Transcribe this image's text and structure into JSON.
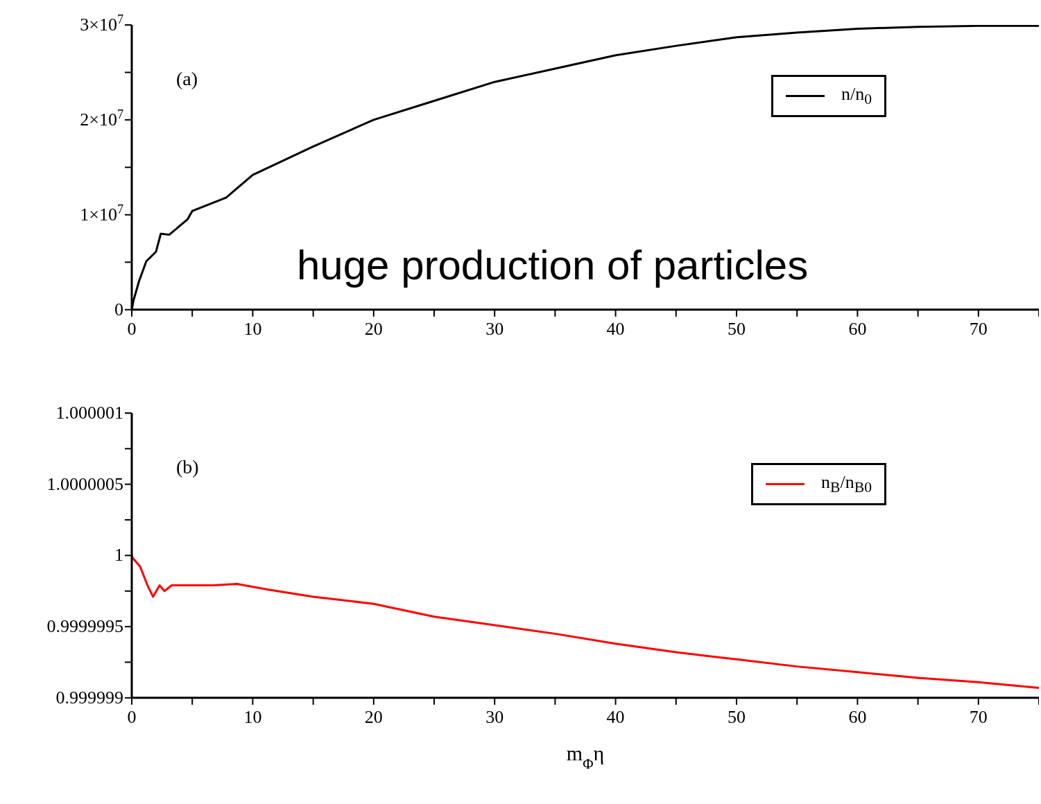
{
  "chart_data": [
    {
      "type": "line",
      "annotations": [
        "(a)",
        "huge production of particles"
      ],
      "x": [
        0,
        0.15,
        0.6,
        1.2,
        2.0,
        2.4,
        3.1,
        4.6,
        5,
        7.8,
        10,
        15,
        20,
        25,
        30,
        35,
        40,
        45,
        50,
        55,
        60,
        65,
        70,
        75
      ],
      "series": [
        {
          "name": "n/n$_{0}$",
          "color": "#000000",
          "values": [
            0,
            1000000,
            3000000,
            5100000,
            6100000,
            8000000,
            7900000,
            9500000,
            10400000,
            11800000,
            14200000,
            17200000,
            20000000,
            22000000,
            24000000,
            25400000,
            26800000,
            27800000,
            28700000,
            29200000,
            29600000,
            29800000,
            29900000,
            29900000
          ]
        }
      ],
      "xlim": [
        0,
        75
      ],
      "xticks": [
        0,
        {
          "value": 5,
          "label": null
        },
        10,
        {
          "value": 15,
          "label": null
        },
        20,
        {
          "value": 25,
          "label": null
        },
        30,
        {
          "value": 35,
          "label": null
        },
        40,
        {
          "value": 45,
          "label": null
        },
        50,
        {
          "value": 55,
          "label": null
        },
        60,
        {
          "value": 65,
          "label": null
        },
        70,
        {
          "value": 75,
          "label": null
        }
      ],
      "ylim": [
        0,
        30000000
      ],
      "yticks": [
        0,
        {
          "value": 5000000,
          "label": null
        },
        {
          "value": 10000000,
          "label": "1×10$^{7}$"
        },
        {
          "value": 15000000,
          "label": null
        },
        {
          "value": 20000000,
          "label": "2×10$^{7}$"
        },
        {
          "value": 25000000,
          "label": null
        },
        {
          "value": 30000000,
          "label": "3×10$^{7}$"
        }
      ],
      "grid": false,
      "legend": "top right",
      "marker": "none",
      "line_style": "solid"
    },
    {
      "type": "line",
      "xlabel": "m$_{Φ}$η",
      "annotations": [
        "(b)"
      ],
      "x": [
        0,
        0.1,
        0.7,
        1.3,
        1.76,
        2.3,
        2.7,
        3.3,
        4.7,
        6.7,
        8.7,
        11.3,
        15,
        20,
        25,
        30,
        35,
        40,
        45,
        50,
        55,
        60,
        65,
        70,
        75
      ],
      "series": [
        {
          "name": "n$_{B}$/n$_{B0}$",
          "color": "#ff0000",
          "values": [
            1,
            0.99999998,
            0.99999992,
            0.99999979,
            0.99999971,
            0.99999979,
            0.99999975,
            0.99999979,
            0.99999979,
            0.99999979,
            0.9999998,
            0.99999976,
            0.99999971,
            0.99999966,
            0.99999957,
            0.99999951,
            0.99999945,
            0.99999938,
            0.99999932,
            0.99999927,
            0.99999922,
            0.99999918,
            0.99999914,
            0.99999911,
            0.99999907
          ]
        }
      ],
      "xlim": [
        0,
        75
      ],
      "xticks": [
        0,
        {
          "value": 5,
          "label": null
        },
        10,
        {
          "value": 15,
          "label": null
        },
        20,
        {
          "value": 25,
          "label": null
        },
        30,
        {
          "value": 35,
          "label": null
        },
        40,
        {
          "value": 45,
          "label": null
        },
        50,
        {
          "value": 55,
          "label": null
        },
        60,
        {
          "value": 65,
          "label": null
        },
        70,
        {
          "value": 75,
          "label": null
        }
      ],
      "ylim": [
        0.999999,
        1.000001
      ],
      "yticks": [
        0.999999,
        {
          "value": 0.99999925,
          "label": null
        },
        0.9999995,
        {
          "value": 0.99999975,
          "label": null
        },
        1,
        {
          "value": 1.00000025,
          "label": null
        },
        1.0000005,
        {
          "value": 1.00000075,
          "label": null
        },
        1.000001
      ],
      "grid": false,
      "legend": "top right",
      "marker": "none",
      "line_style": "solid"
    }
  ]
}
